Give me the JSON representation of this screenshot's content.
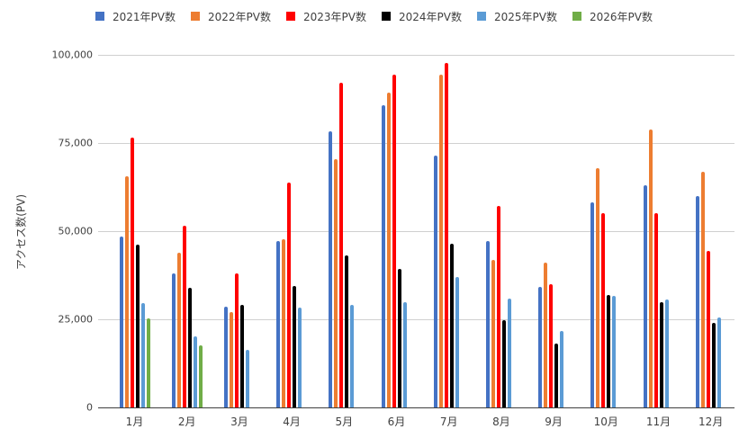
{
  "chart_data": {
    "type": "bar",
    "title": "",
    "xlabel": "",
    "ylabel": "アクセス数(PV)",
    "ylim": [
      0,
      100000
    ],
    "yticks": [
      0,
      25000,
      50000,
      75000,
      100000
    ],
    "ytick_labels": [
      "0",
      "25,000",
      "50,000",
      "75,000",
      "100,000"
    ],
    "grid": true,
    "legend_position": "top",
    "categories": [
      "1月",
      "2月",
      "3月",
      "4月",
      "5月",
      "6月",
      "7月",
      "8月",
      "9月",
      "10月",
      "11月",
      "12月"
    ],
    "series": [
      {
        "name": "2021年PV数",
        "color": "#4472C4",
        "values": [
          48500,
          37900,
          28500,
          47300,
          78400,
          85800,
          71500,
          47300,
          34300,
          58200,
          63100,
          60000
        ]
      },
      {
        "name": "2022年PV数",
        "color": "#ED7D31",
        "values": [
          65600,
          43900,
          27000,
          47600,
          70300,
          89200,
          94300,
          41800,
          41000,
          67900,
          78700,
          66800
        ]
      },
      {
        "name": "2023年PV数",
        "color": "#FF0000",
        "values": [
          76600,
          51500,
          37900,
          63900,
          92200,
          94300,
          97600,
          57200,
          35000,
          55200,
          55200,
          44500
        ]
      },
      {
        "name": "2024年PV数",
        "color": "#000000",
        "values": [
          46300,
          33900,
          29000,
          34500,
          43200,
          39400,
          46500,
          24700,
          18200,
          32000,
          29900,
          24100
        ]
      },
      {
        "name": "2025年PV数",
        "color": "#5B9BD5",
        "values": [
          29700,
          20100,
          16300,
          28400,
          29200,
          29800,
          37100,
          30900,
          21800,
          31700,
          30700,
          25600
        ]
      },
      {
        "name": "2026年PV数",
        "color": "#70AD47",
        "values": [
          25200,
          17500,
          null,
          null,
          null,
          null,
          null,
          null,
          null,
          null,
          null,
          null
        ]
      }
    ]
  }
}
